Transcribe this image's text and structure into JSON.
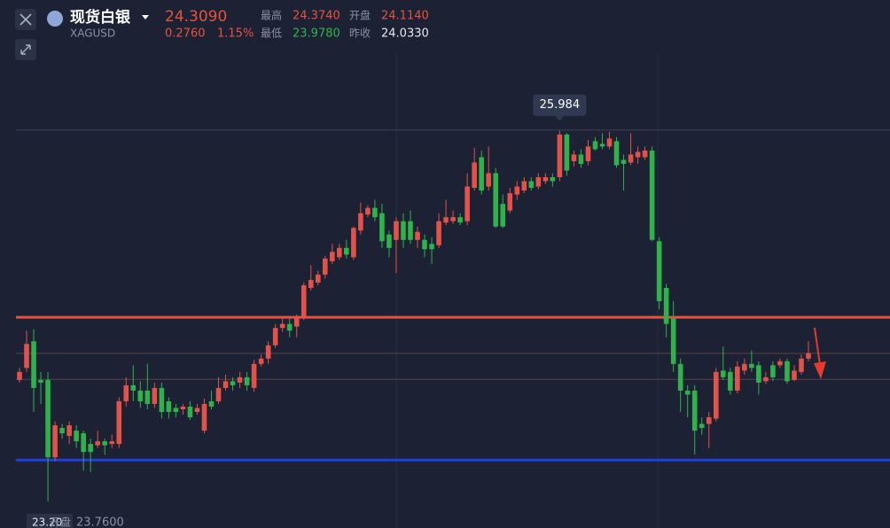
{
  "header": {
    "name": "现货白银",
    "symbol": "XAGUSD",
    "price": "24.3090",
    "change": "0.2760",
    "change_pct": "1.15%",
    "stats": [
      {
        "label": "最高",
        "value": "24.3740"
      },
      {
        "label": "开盘",
        "value": "24.1140"
      },
      {
        "label": "最低",
        "value": "23.9780"
      },
      {
        "label": "昨收",
        "value": "24.0330"
      }
    ]
  },
  "footer_labels": [
    "23.20",
    "开盘",
    "23.7600"
  ],
  "chart_data": {
    "type": "candlestick",
    "up_color": "#e0524a",
    "down_color": "#2fb24c",
    "ylim": [
      23.0,
      26.56
    ],
    "price_lines": [
      25.984,
      24.309,
      24.114
    ],
    "levels": [
      {
        "value": 24.58,
        "color": "#e5533d"
      },
      {
        "value": 23.51,
        "color": "#1f3fe0"
      }
    ],
    "open": [
      24.11,
      24.2,
      24.4,
      24.11,
      24.11,
      23.53,
      23.75,
      23.69,
      23.73,
      23.71,
      23.63,
      23.62,
      23.65,
      23.63,
      23.63,
      23.95,
      24.07,
      24.03,
      24.03,
      23.93,
      24.05,
      23.95,
      23.9,
      23.89,
      23.91,
      23.87,
      23.73,
      23.95,
      23.95,
      24.05,
      24.1,
      24.09,
      24.13,
      24.05,
      24.23,
      24.27,
      24.37,
      24.5,
      24.53,
      24.51,
      24.58,
      24.8,
      24.84,
      24.9,
      25.0,
      25.03,
      25.1,
      25.03,
      25.23,
      25.35,
      25.4,
      25.36,
      25.2,
      25.16,
      25.3,
      25.3,
      25.16,
      25.16,
      25.13,
      25.12,
      25.29,
      25.3,
      25.33,
      25.3,
      25.55,
      25.78,
      25.56,
      25.66,
      25.43,
      25.38,
      25.5,
      25.53,
      25.6,
      25.56,
      25.6,
      25.63,
      25.63,
      25.95,
      25.75,
      25.8,
      25.75,
      25.9,
      25.88,
      25.86,
      25.9,
      25.76,
      25.74,
      25.78,
      25.78,
      25.83,
      25.15,
      24.8,
      24.57,
      24.23,
      24.03,
      24.03,
      23.78,
      23.78,
      23.82,
      24.18,
      24.17,
      24.03,
      24.18,
      24.23,
      24.22,
      24.1,
      24.22,
      24.22,
      24.25,
      24.11,
      24.17,
      24.27
    ],
    "high": [
      24.2,
      24.48,
      24.49,
      24.17,
      24.17,
      23.8,
      23.78,
      23.8,
      23.77,
      23.73,
      23.67,
      23.73,
      23.67,
      23.7,
      23.98,
      24.13,
      24.22,
      24.1,
      24.23,
      24.09,
      24.09,
      23.98,
      23.93,
      23.93,
      23.95,
      23.93,
      23.97,
      24.03,
      24.13,
      24.15,
      24.13,
      24.17,
      24.17,
      24.26,
      24.3,
      24.4,
      24.53,
      24.57,
      24.57,
      24.6,
      24.84,
      24.97,
      24.93,
      25.04,
      25.13,
      25.13,
      25.16,
      25.26,
      25.44,
      25.42,
      25.46,
      25.43,
      25.23,
      25.33,
      25.36,
      25.38,
      25.26,
      25.2,
      25.18,
      25.36,
      25.46,
      25.38,
      25.36,
      25.66,
      25.85,
      25.83,
      25.86,
      25.7,
      25.5,
      25.55,
      25.6,
      25.63,
      25.63,
      25.66,
      25.66,
      25.66,
      25.98,
      25.96,
      25.83,
      25.84,
      25.91,
      25.93,
      25.96,
      25.97,
      25.93,
      25.8,
      25.96,
      25.86,
      25.86,
      25.86,
      25.18,
      24.83,
      24.7,
      24.27,
      24.07,
      24.07,
      23.83,
      23.87,
      24.2,
      24.36,
      24.2,
      24.25,
      24.27,
      24.33,
      24.25,
      24.17,
      24.25,
      24.27,
      24.27,
      24.22,
      24.3,
      24.4
    ],
    "low": [
      24.09,
      24.17,
      23.87,
      23.93,
      23.2,
      23.5,
      23.67,
      23.63,
      23.6,
      23.43,
      23.42,
      23.6,
      23.55,
      23.6,
      23.6,
      23.91,
      23.95,
      23.9,
      23.89,
      23.9,
      23.82,
      23.82,
      23.83,
      23.85,
      23.81,
      23.85,
      23.71,
      23.89,
      23.93,
      24.03,
      24.03,
      24.05,
      24.03,
      24.02,
      24.21,
      24.23,
      24.35,
      24.47,
      24.43,
      24.43,
      24.56,
      24.78,
      24.82,
      24.87,
      24.98,
      25.01,
      25.02,
      25.01,
      25.2,
      25.33,
      25.3,
      25.1,
      25.03,
      24.91,
      25.1,
      25.13,
      25.1,
      25.03,
      24.98,
      25.1,
      25.27,
      25.28,
      25.27,
      25.27,
      25.53,
      25.5,
      25.53,
      25.25,
      25.25,
      25.36,
      25.46,
      25.51,
      25.53,
      25.54,
      25.58,
      25.56,
      25.6,
      25.64,
      25.71,
      25.7,
      25.72,
      25.83,
      25.84,
      25.84,
      25.7,
      25.53,
      25.72,
      25.73,
      25.76,
      25.15,
      24.64,
      24.43,
      24.17,
      23.87,
      23.83,
      23.55,
      23.7,
      23.6,
      23.8,
      24.11,
      24.0,
      24.01,
      24.15,
      24.17,
      24.0,
      24.08,
      24.1,
      24.2,
      24.08,
      24.1,
      24.15,
      24.25
    ],
    "close": [
      24.17,
      24.38,
      24.05,
      24.09,
      23.53,
      23.77,
      23.71,
      23.77,
      23.65,
      23.57,
      23.57,
      23.65,
      23.62,
      23.65,
      23.95,
      24.07,
      24.03,
      23.95,
      23.93,
      24.05,
      23.87,
      23.87,
      23.87,
      23.91,
      23.83,
      23.9,
      23.93,
      23.91,
      24.05,
      24.1,
      24.07,
      24.13,
      24.07,
      24.23,
      24.27,
      24.37,
      24.5,
      24.53,
      24.48,
      24.58,
      24.82,
      24.86,
      24.9,
      25.02,
      25.07,
      25.1,
      25.05,
      25.25,
      25.36,
      25.4,
      25.33,
      25.15,
      25.1,
      25.3,
      25.16,
      25.16,
      25.22,
      25.09,
      25.09,
      25.3,
      25.33,
      25.33,
      25.29,
      25.56,
      25.74,
      25.53,
      25.66,
      25.26,
      25.26,
      25.51,
      25.56,
      25.6,
      25.55,
      25.63,
      25.63,
      25.6,
      25.95,
      25.68,
      25.8,
      25.73,
      25.86,
      25.84,
      25.86,
      25.92,
      25.72,
      25.73,
      25.8,
      25.82,
      25.83,
      25.16,
      24.7,
      24.53,
      24.23,
      24.03,
      24.0,
      23.73,
      23.75,
      23.83,
      24.17,
      24.13,
      24.03,
      24.21,
      24.23,
      24.2,
      24.09,
      24.13,
      24.13,
      24.25,
      24.1,
      24.18,
      24.27,
      24.31
    ]
  }
}
